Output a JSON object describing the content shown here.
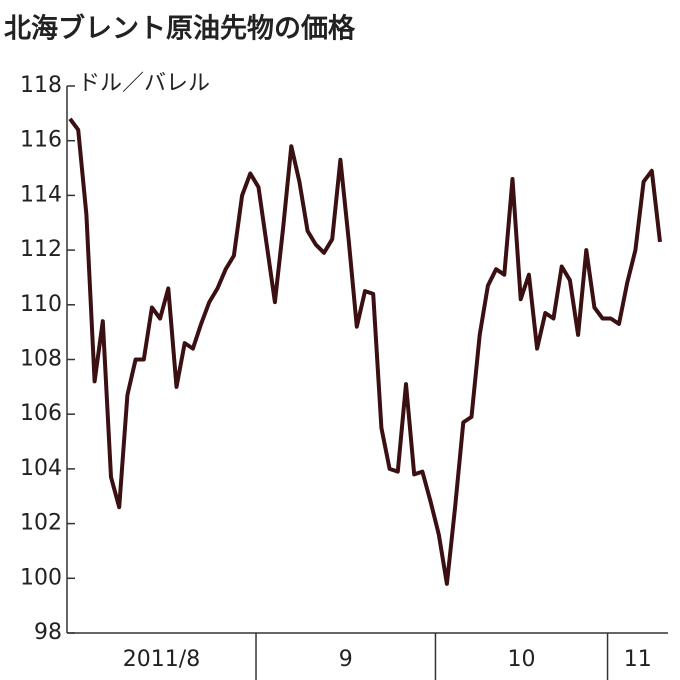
{
  "chart_data": {
    "type": "line",
    "title": "北海ブレント原油先物の価格",
    "unit_label": "ドル／バレル",
    "categories": [
      null,
      null,
      null,
      null,
      null,
      null,
      null,
      null,
      null,
      null,
      null,
      null,
      null,
      null,
      null,
      null,
      null,
      null,
      null,
      null,
      null,
      null,
      null,
      null,
      null,
      null,
      null,
      null,
      null,
      null,
      null,
      null,
      null,
      null,
      null,
      null,
      null,
      null,
      null,
      null,
      null,
      null,
      null,
      null,
      null,
      null,
      null,
      null,
      null,
      null,
      null,
      null,
      null,
      null,
      null,
      null,
      null,
      null,
      null,
      null,
      null,
      null,
      null,
      null,
      null,
      null,
      null,
      null,
      null,
      null,
      null,
      null,
      null
    ],
    "x_labels": [
      "2011/8",
      "9",
      "10",
      "11"
    ],
    "series": [
      {
        "name": "価格",
        "color": "#3a1012",
        "values": [
          116.8,
          116.4,
          113.3,
          107.2,
          109.4,
          103.7,
          102.6,
          106.7,
          108.0,
          108.0,
          109.9,
          109.5,
          110.6,
          107.0,
          108.6,
          108.4,
          109.3,
          110.1,
          110.6,
          111.3,
          111.8,
          114.0,
          114.8,
          114.3,
          112.2,
          110.1,
          112.8,
          115.8,
          114.5,
          112.7,
          112.2,
          111.9,
          112.4,
          115.3,
          112.4,
          109.2,
          110.5,
          110.4,
          105.5,
          104.0,
          103.9,
          107.1,
          103.8,
          103.9,
          102.8,
          101.6,
          99.8,
          102.6,
          105.7,
          105.9,
          108.9,
          110.7,
          111.3,
          111.1,
          114.6,
          110.2,
          111.1,
          108.4,
          109.7,
          109.5,
          111.4,
          110.9,
          108.9,
          112.0,
          109.9,
          109.5,
          109.5,
          109.3,
          110.8,
          112.0,
          114.5,
          114.9,
          112.3
        ]
      }
    ],
    "ylim": [
      98,
      118
    ],
    "yticks": [
      98,
      100,
      102,
      104,
      106,
      108,
      110,
      112,
      114,
      116,
      118
    ]
  }
}
